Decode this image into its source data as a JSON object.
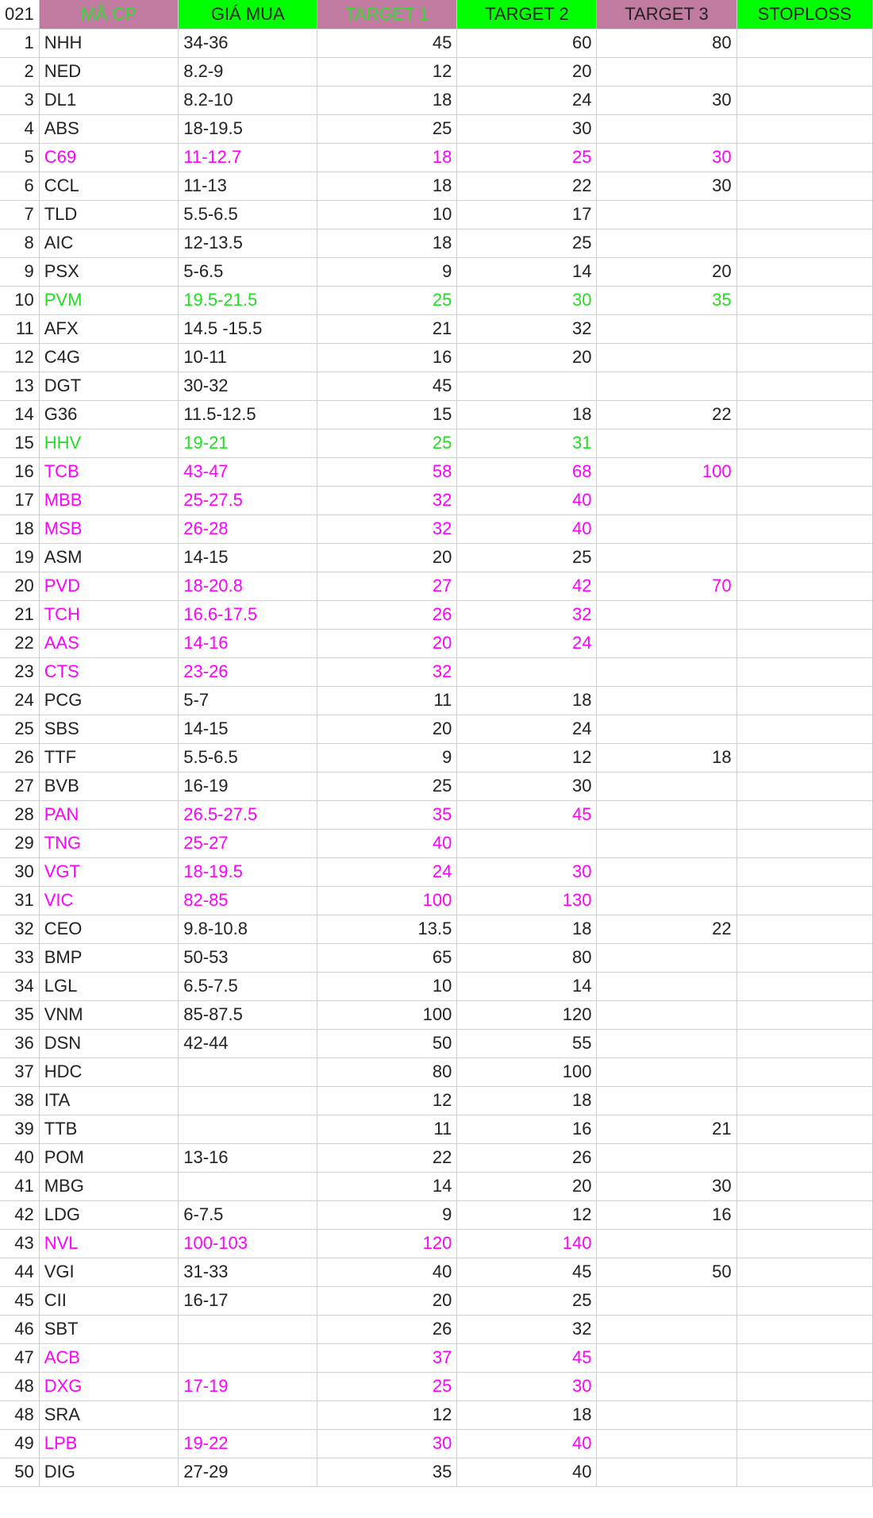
{
  "colors": {
    "header_green": "#00ff00",
    "header_mauve": "#c27ba0",
    "header_text_green": "#33dd33",
    "header_text_dark": "#222222",
    "text_magenta": "#ff00ff",
    "text_green": "#22dd22",
    "text_default": "#222222",
    "grid": "#d0d0d0"
  },
  "header": [
    {
      "label": "021",
      "bg": "#ffffff",
      "color": "#222222"
    },
    {
      "label": "MÃ CP",
      "bg": "#c27ba0",
      "color": "#33dd33"
    },
    {
      "label": "GIÁ MUA",
      "bg": "#00ff00",
      "color": "#222222"
    },
    {
      "label": "TARGET 1",
      "bg": "#c27ba0",
      "color": "#33dd33"
    },
    {
      "label": "TARGET 2",
      "bg": "#00ff00",
      "color": "#222222"
    },
    {
      "label": "TARGET 3",
      "bg": "#c27ba0",
      "color": "#222222"
    },
    {
      "label": "STOPLOSS",
      "bg": "#00ff00",
      "color": "#222222"
    }
  ],
  "rows": [
    {
      "no": "1",
      "code": "NHH",
      "buy": "34-36",
      "t1": "45",
      "t2": "60",
      "t3": "80",
      "sl": "",
      "color": "default"
    },
    {
      "no": "2",
      "code": "NED",
      "buy": "8.2-9",
      "t1": "12",
      "t2": "20",
      "t3": "",
      "sl": "",
      "color": "default"
    },
    {
      "no": "3",
      "code": "DL1",
      "buy": "8.2-10",
      "t1": "18",
      "t2": "24",
      "t3": "30",
      "sl": "",
      "color": "default"
    },
    {
      "no": "4",
      "code": "ABS",
      "buy": "18-19.5",
      "t1": "25",
      "t2": "30",
      "t3": "",
      "sl": "",
      "color": "default"
    },
    {
      "no": "5",
      "code": "C69",
      "buy": "11-12.7",
      "t1": "18",
      "t2": "25",
      "t3": "30",
      "sl": "",
      "color": "magenta"
    },
    {
      "no": "6",
      "code": "CCL",
      "buy": "11-13",
      "t1": "18",
      "t2": "22",
      "t3": "30",
      "sl": "",
      "color": "default"
    },
    {
      "no": "7",
      "code": "TLD",
      "buy": "5.5-6.5",
      "t1": "10",
      "t2": "17",
      "t3": "",
      "sl": "",
      "color": "default"
    },
    {
      "no": "8",
      "code": "AIC",
      "buy": "12-13.5",
      "t1": "18",
      "t2": "25",
      "t3": "",
      "sl": "",
      "color": "default"
    },
    {
      "no": "9",
      "code": "PSX",
      "buy": "5-6.5",
      "t1": "9",
      "t2": "14",
      "t3": "20",
      "sl": "",
      "color": "default"
    },
    {
      "no": "10",
      "code": "PVM",
      "buy": "19.5-21.5",
      "t1": "25",
      "t2": "30",
      "t3": "35",
      "sl": "",
      "color": "green"
    },
    {
      "no": "11",
      "code": "AFX",
      "buy": "14.5 -15.5",
      "t1": "21",
      "t2": "32",
      "t3": "",
      "sl": "",
      "color": "default"
    },
    {
      "no": "12",
      "code": "C4G",
      "buy": "10-11",
      "t1": "16",
      "t2": "20",
      "t3": "",
      "sl": "",
      "color": "default"
    },
    {
      "no": "13",
      "code": "DGT",
      "buy": "30-32",
      "t1": "45",
      "t2": "",
      "t3": "",
      "sl": "",
      "color": "default"
    },
    {
      "no": "14",
      "code": "G36",
      "buy": "11.5-12.5",
      "t1": "15",
      "t2": "18",
      "t3": "22",
      "sl": "",
      "color": "default"
    },
    {
      "no": "15",
      "code": "HHV",
      "buy": "19-21",
      "t1": "25",
      "t2": "31",
      "t3": "",
      "sl": "",
      "color": "green"
    },
    {
      "no": "16",
      "code": "TCB",
      "buy": "43-47",
      "t1": "58",
      "t2": "68",
      "t3": "100",
      "sl": "",
      "color": "magenta"
    },
    {
      "no": "17",
      "code": "MBB",
      "buy": "25-27.5",
      "t1": "32",
      "t2": "40",
      "t3": "",
      "sl": "",
      "color": "magenta"
    },
    {
      "no": "18",
      "code": "MSB",
      "buy": "26-28",
      "t1": "32",
      "t2": "40",
      "t3": "",
      "sl": "",
      "color": "magenta"
    },
    {
      "no": "19",
      "code": "ASM",
      "buy": "14-15",
      "t1": "20",
      "t2": "25",
      "t3": "",
      "sl": "",
      "color": "default"
    },
    {
      "no": "20",
      "code": "PVD",
      "buy": "18-20.8",
      "t1": "27",
      "t2": "42",
      "t3": "70",
      "sl": "",
      "color": "magenta"
    },
    {
      "no": "21",
      "code": "TCH",
      "buy": "16.6-17.5",
      "t1": "26",
      "t2": "32",
      "t3": "",
      "sl": "",
      "color": "magenta"
    },
    {
      "no": "22",
      "code": "AAS",
      "buy": "14-16",
      "t1": "20",
      "t2": "24",
      "t3": "",
      "sl": "",
      "color": "magenta"
    },
    {
      "no": "23",
      "code": "CTS",
      "buy": "23-26",
      "t1": "32",
      "t2": "",
      "t3": "",
      "sl": "",
      "color": "magenta"
    },
    {
      "no": "24",
      "code": "PCG",
      "buy": "5-7",
      "t1": "11",
      "t2": "18",
      "t3": "",
      "sl": "",
      "color": "default"
    },
    {
      "no": "25",
      "code": "SBS",
      "buy": "14-15",
      "t1": "20",
      "t2": "24",
      "t3": "",
      "sl": "",
      "color": "default"
    },
    {
      "no": "26",
      "code": "TTF",
      "buy": "5.5-6.5",
      "t1": "9",
      "t2": "12",
      "t3": "18",
      "sl": "",
      "color": "default"
    },
    {
      "no": "27",
      "code": "BVB",
      "buy": "16-19",
      "t1": "25",
      "t2": "30",
      "t3": "",
      "sl": "",
      "color": "default"
    },
    {
      "no": "28",
      "code": "PAN",
      "buy": "26.5-27.5",
      "t1": "35",
      "t2": "45",
      "t3": "",
      "sl": "",
      "color": "magenta"
    },
    {
      "no": "29",
      "code": "TNG",
      "buy": "25-27",
      "t1": "40",
      "t2": "",
      "t3": "",
      "sl": "",
      "color": "magenta"
    },
    {
      "no": "30",
      "code": "VGT",
      "buy": "18-19.5",
      "t1": "24",
      "t2": "30",
      "t3": "",
      "sl": "",
      "color": "magenta"
    },
    {
      "no": "31",
      "code": "VIC",
      "buy": "82-85",
      "t1": "100",
      "t2": "130",
      "t3": "",
      "sl": "",
      "color": "magenta"
    },
    {
      "no": "32",
      "code": "CEO",
      "buy": "9.8-10.8",
      "t1": "13.5",
      "t2": "18",
      "t3": "22",
      "sl": "",
      "color": "default"
    },
    {
      "no": "33",
      "code": "BMP",
      "buy": "50-53",
      "t1": "65",
      "t2": "80",
      "t3": "",
      "sl": "",
      "color": "default"
    },
    {
      "no": "34",
      "code": "LGL",
      "buy": "6.5-7.5",
      "t1": "10",
      "t2": "14",
      "t3": "",
      "sl": "",
      "color": "default"
    },
    {
      "no": "35",
      "code": "VNM",
      "buy": "85-87.5",
      "t1": "100",
      "t2": "120",
      "t3": "",
      "sl": "",
      "color": "default"
    },
    {
      "no": "36",
      "code": "DSN",
      "buy": "42-44",
      "t1": "50",
      "t2": "55",
      "t3": "",
      "sl": "",
      "color": "default"
    },
    {
      "no": "37",
      "code": "HDC",
      "buy": "",
      "t1": "80",
      "t2": "100",
      "t3": "",
      "sl": "",
      "color": "default"
    },
    {
      "no": "38",
      "code": "ITA",
      "buy": "",
      "t1": "12",
      "t2": "18",
      "t3": "",
      "sl": "",
      "color": "default"
    },
    {
      "no": "39",
      "code": "TTB",
      "buy": "",
      "t1": "11",
      "t2": "16",
      "t3": "21",
      "sl": "",
      "color": "default"
    },
    {
      "no": "40",
      "code": "POM",
      "buy": "13-16",
      "t1": "22",
      "t2": "26",
      "t3": "",
      "sl": "",
      "color": "default"
    },
    {
      "no": "41",
      "code": "MBG",
      "buy": "",
      "t1": "14",
      "t2": "20",
      "t3": "30",
      "sl": "",
      "color": "default"
    },
    {
      "no": "42",
      "code": "LDG",
      "buy": "6-7.5",
      "t1": "9",
      "t2": "12",
      "t3": "16",
      "sl": "",
      "color": "default"
    },
    {
      "no": "43",
      "code": "NVL",
      "buy": "100-103",
      "t1": "120",
      "t2": "140",
      "t3": "",
      "sl": "",
      "color": "magenta"
    },
    {
      "no": "44",
      "code": "VGI",
      "buy": "31-33",
      "t1": "40",
      "t2": "45",
      "t3": "50",
      "sl": "",
      "color": "default"
    },
    {
      "no": "45",
      "code": "CII",
      "buy": "16-17",
      "t1": "20",
      "t2": "25",
      "t3": "",
      "sl": "",
      "color": "default"
    },
    {
      "no": "46",
      "code": "SBT",
      "buy": "",
      "t1": "26",
      "t2": "32",
      "t3": "",
      "sl": "",
      "color": "default"
    },
    {
      "no": "47",
      "code": "ACB",
      "buy": "",
      "t1": "37",
      "t2": "45",
      "t3": "",
      "sl": "",
      "color": "magenta"
    },
    {
      "no": "48",
      "code": "DXG",
      "buy": "17-19",
      "t1": "25",
      "t2": "30",
      "t3": "",
      "sl": "",
      "color": "magenta"
    },
    {
      "no": "48",
      "code": "SRA",
      "buy": "",
      "t1": "12",
      "t2": "18",
      "t3": "",
      "sl": "",
      "color": "default"
    },
    {
      "no": "49",
      "code": "LPB",
      "buy": "19-22",
      "t1": "30",
      "t2": "40",
      "t3": "",
      "sl": "",
      "color": "magenta"
    },
    {
      "no": "50",
      "code": "DIG",
      "buy": "27-29",
      "t1": "35",
      "t2": "40",
      "t3": "",
      "sl": "",
      "color": "default"
    }
  ]
}
